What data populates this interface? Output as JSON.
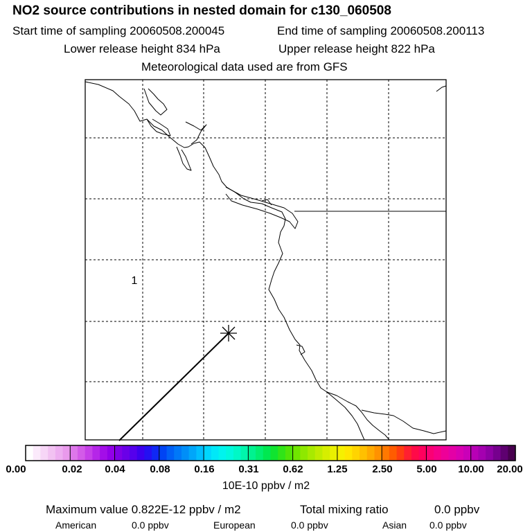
{
  "header": {
    "title": "NO2 source contributions in nested domain for c130_060508",
    "start_label": "Start time of sampling 20060508.200045",
    "end_label": "End time of sampling 20060508.200113",
    "lower_label": "Lower release height  834 hPa",
    "upper_label": "Upper release height  822 hPa",
    "met_label": "Meteorological data used are from GFS"
  },
  "map": {
    "grid_marker_label": "1",
    "colors": {
      "coastline": "#000000",
      "grid": "#000000",
      "frame": "#000000"
    }
  },
  "colorbar": {
    "tick_labels": [
      "0.00",
      "0.02",
      "0.04",
      "0.08",
      "0.16",
      "0.31",
      "0.62",
      "1.25",
      "2.50",
      "5.00",
      "10.00",
      "20.00"
    ],
    "units": "10E-10 ppbv / m2",
    "colors": [
      "#ffffff",
      "#fbeafb",
      "#f7d6f7",
      "#f2c2f2",
      "#edaef0",
      "#e99aec",
      "#dd77ea",
      "#d35be8",
      "#c640e8",
      "#b526e8",
      "#a30ee8",
      "#9200e8",
      "#7f00e6",
      "#6a00e8",
      "#5500ec",
      "#3c00ee",
      "#2410f2",
      "#1028f4",
      "#0044f4",
      "#0060f6",
      "#0078f8",
      "#008ef8",
      "#00a6fa",
      "#00beff",
      "#00d6fd",
      "#00e8f8",
      "#00f4ee",
      "#00f8dd",
      "#00f8c6",
      "#00f6ac",
      "#00f290",
      "#00ee70",
      "#00e850",
      "#10e430",
      "#30e418",
      "#50e408",
      "#70e600",
      "#8ee800",
      "#a8ea00",
      "#c0ec00",
      "#d6ee00",
      "#eaf000",
      "#f6f000",
      "#ffe600",
      "#ffd400",
      "#ffc000",
      "#ffaa00",
      "#ff9200",
      "#ff7800",
      "#ff5c00",
      "#ff3e10",
      "#ff2030",
      "#ff0a48",
      "#ff005e",
      "#fb0074",
      "#f60088",
      "#ee0098",
      "#e400a6",
      "#d800b2",
      "#ca00b8",
      "#b800b6",
      "#a400b0",
      "#8e00a4",
      "#76008e",
      "#5e0070",
      "#48004e"
    ]
  },
  "stats": {
    "max_label": "Maximum value  0.822E-12 ppbv / m2",
    "total_label": "Total mixing ratio",
    "total_value": "0.0 ppbv",
    "regions": [
      {
        "name": "American",
        "value": "0.0 ppbv"
      },
      {
        "name": "European",
        "value": "0.0 ppbv"
      },
      {
        "name": "Asian",
        "value": "0.0 ppbv"
      }
    ]
  }
}
